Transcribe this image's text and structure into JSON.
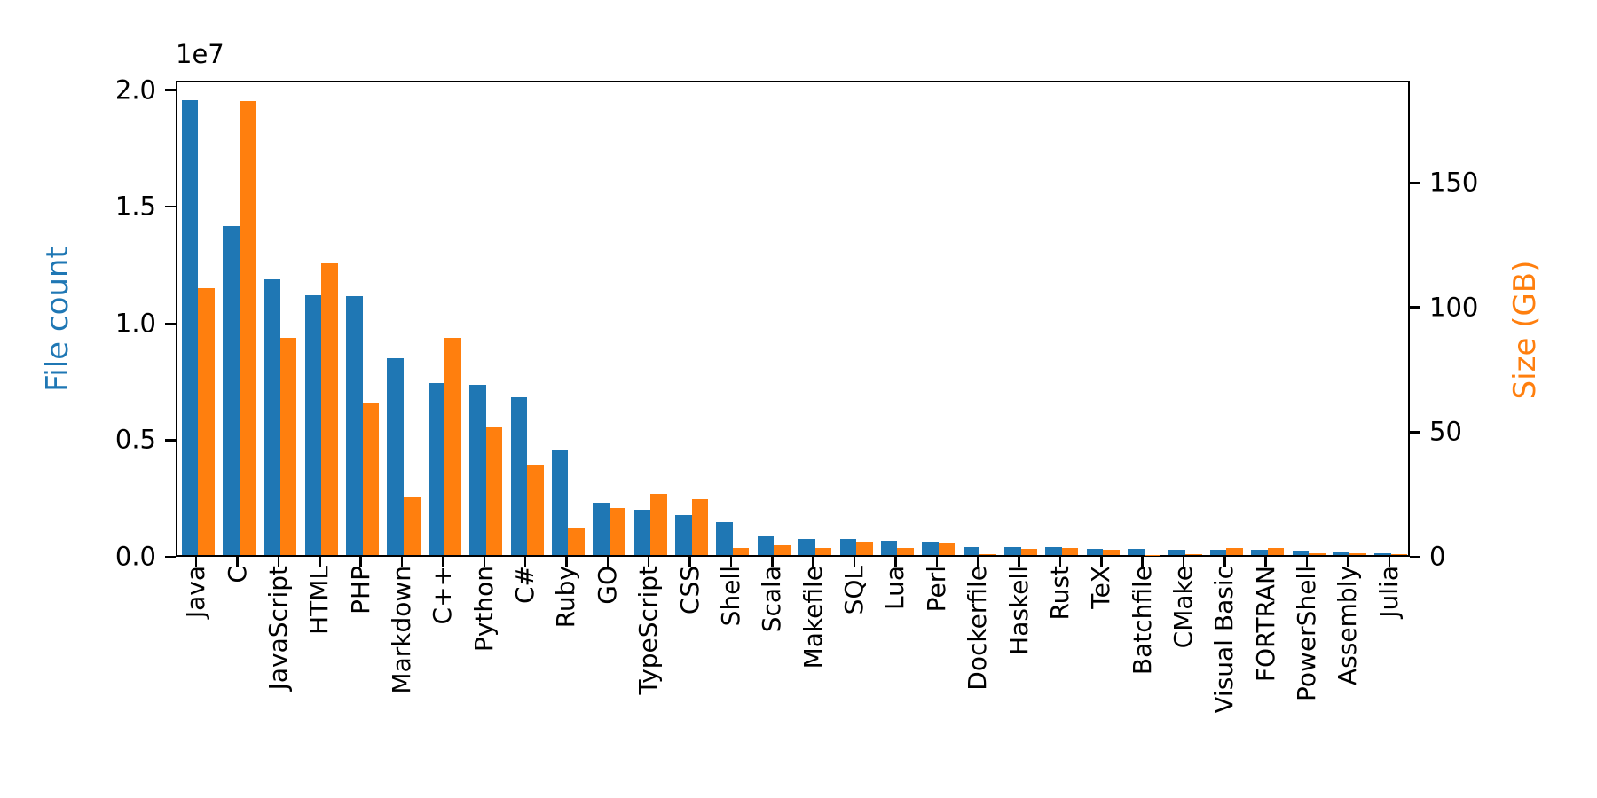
{
  "chart_data": {
    "type": "bar",
    "title": "",
    "categories": [
      "Java",
      "C",
      "JavaScript",
      "HTML",
      "PHP",
      "Markdown",
      "C++",
      "Python",
      "C#",
      "Ruby",
      "GO",
      "TypeScript",
      "CSS",
      "Shell",
      "Scala",
      "Makefile",
      "SQL",
      "Lua",
      "Perl",
      "Dockerfile",
      "Haskell",
      "Rust",
      "TeX",
      "Batchfile",
      "CMake",
      "Visual Basic",
      "FORTRAN",
      "PowerShell",
      "Assembly",
      "Julia"
    ],
    "series": [
      {
        "name": "File count",
        "axis": "left",
        "color": "#1f77b4",
        "values": [
          19500000,
          14100000,
          11800000,
          11150000,
          11100000,
          8450000,
          7360000,
          7280000,
          6780000,
          4470000,
          2250000,
          1930000,
          1720000,
          1390000,
          820000,
          690000,
          680000,
          600000,
          560000,
          360000,
          340000,
          330000,
          285000,
          280000,
          235000,
          230000,
          220000,
          200000,
          110000,
          60000
        ]
      },
      {
        "name": "Size (GB)",
        "axis": "right",
        "color": "#ff7f0e",
        "values": [
          107,
          182,
          87,
          117,
          61,
          23,
          87,
          51,
          36,
          10.7,
          19,
          24.5,
          22.5,
          2.7,
          3.8,
          2.9,
          5.3,
          2.9,
          4.9,
          0.3,
          2.4,
          2.8,
          2.3,
          0.15,
          0.5,
          3.0,
          2.7,
          0.7,
          0.8,
          0.2
        ]
      }
    ],
    "left_axis": {
      "label": "File count",
      "color": "#1f77b4",
      "offset_text": "1e7",
      "tick_labels": [
        "0.0",
        "0.5",
        "1.0",
        "1.5",
        "2.0"
      ],
      "tick_values": [
        0,
        5000000,
        10000000,
        15000000,
        20000000
      ],
      "max": 20400000
    },
    "right_axis": {
      "label": "Size (GB)",
      "color": "#ff7f0e",
      "tick_labels": [
        "0",
        "50",
        "100",
        "150"
      ],
      "tick_values": [
        0,
        50,
        100,
        150
      ],
      "max": 190.8
    },
    "legend": "none",
    "grid": false,
    "x_tick_rotation": 90
  }
}
